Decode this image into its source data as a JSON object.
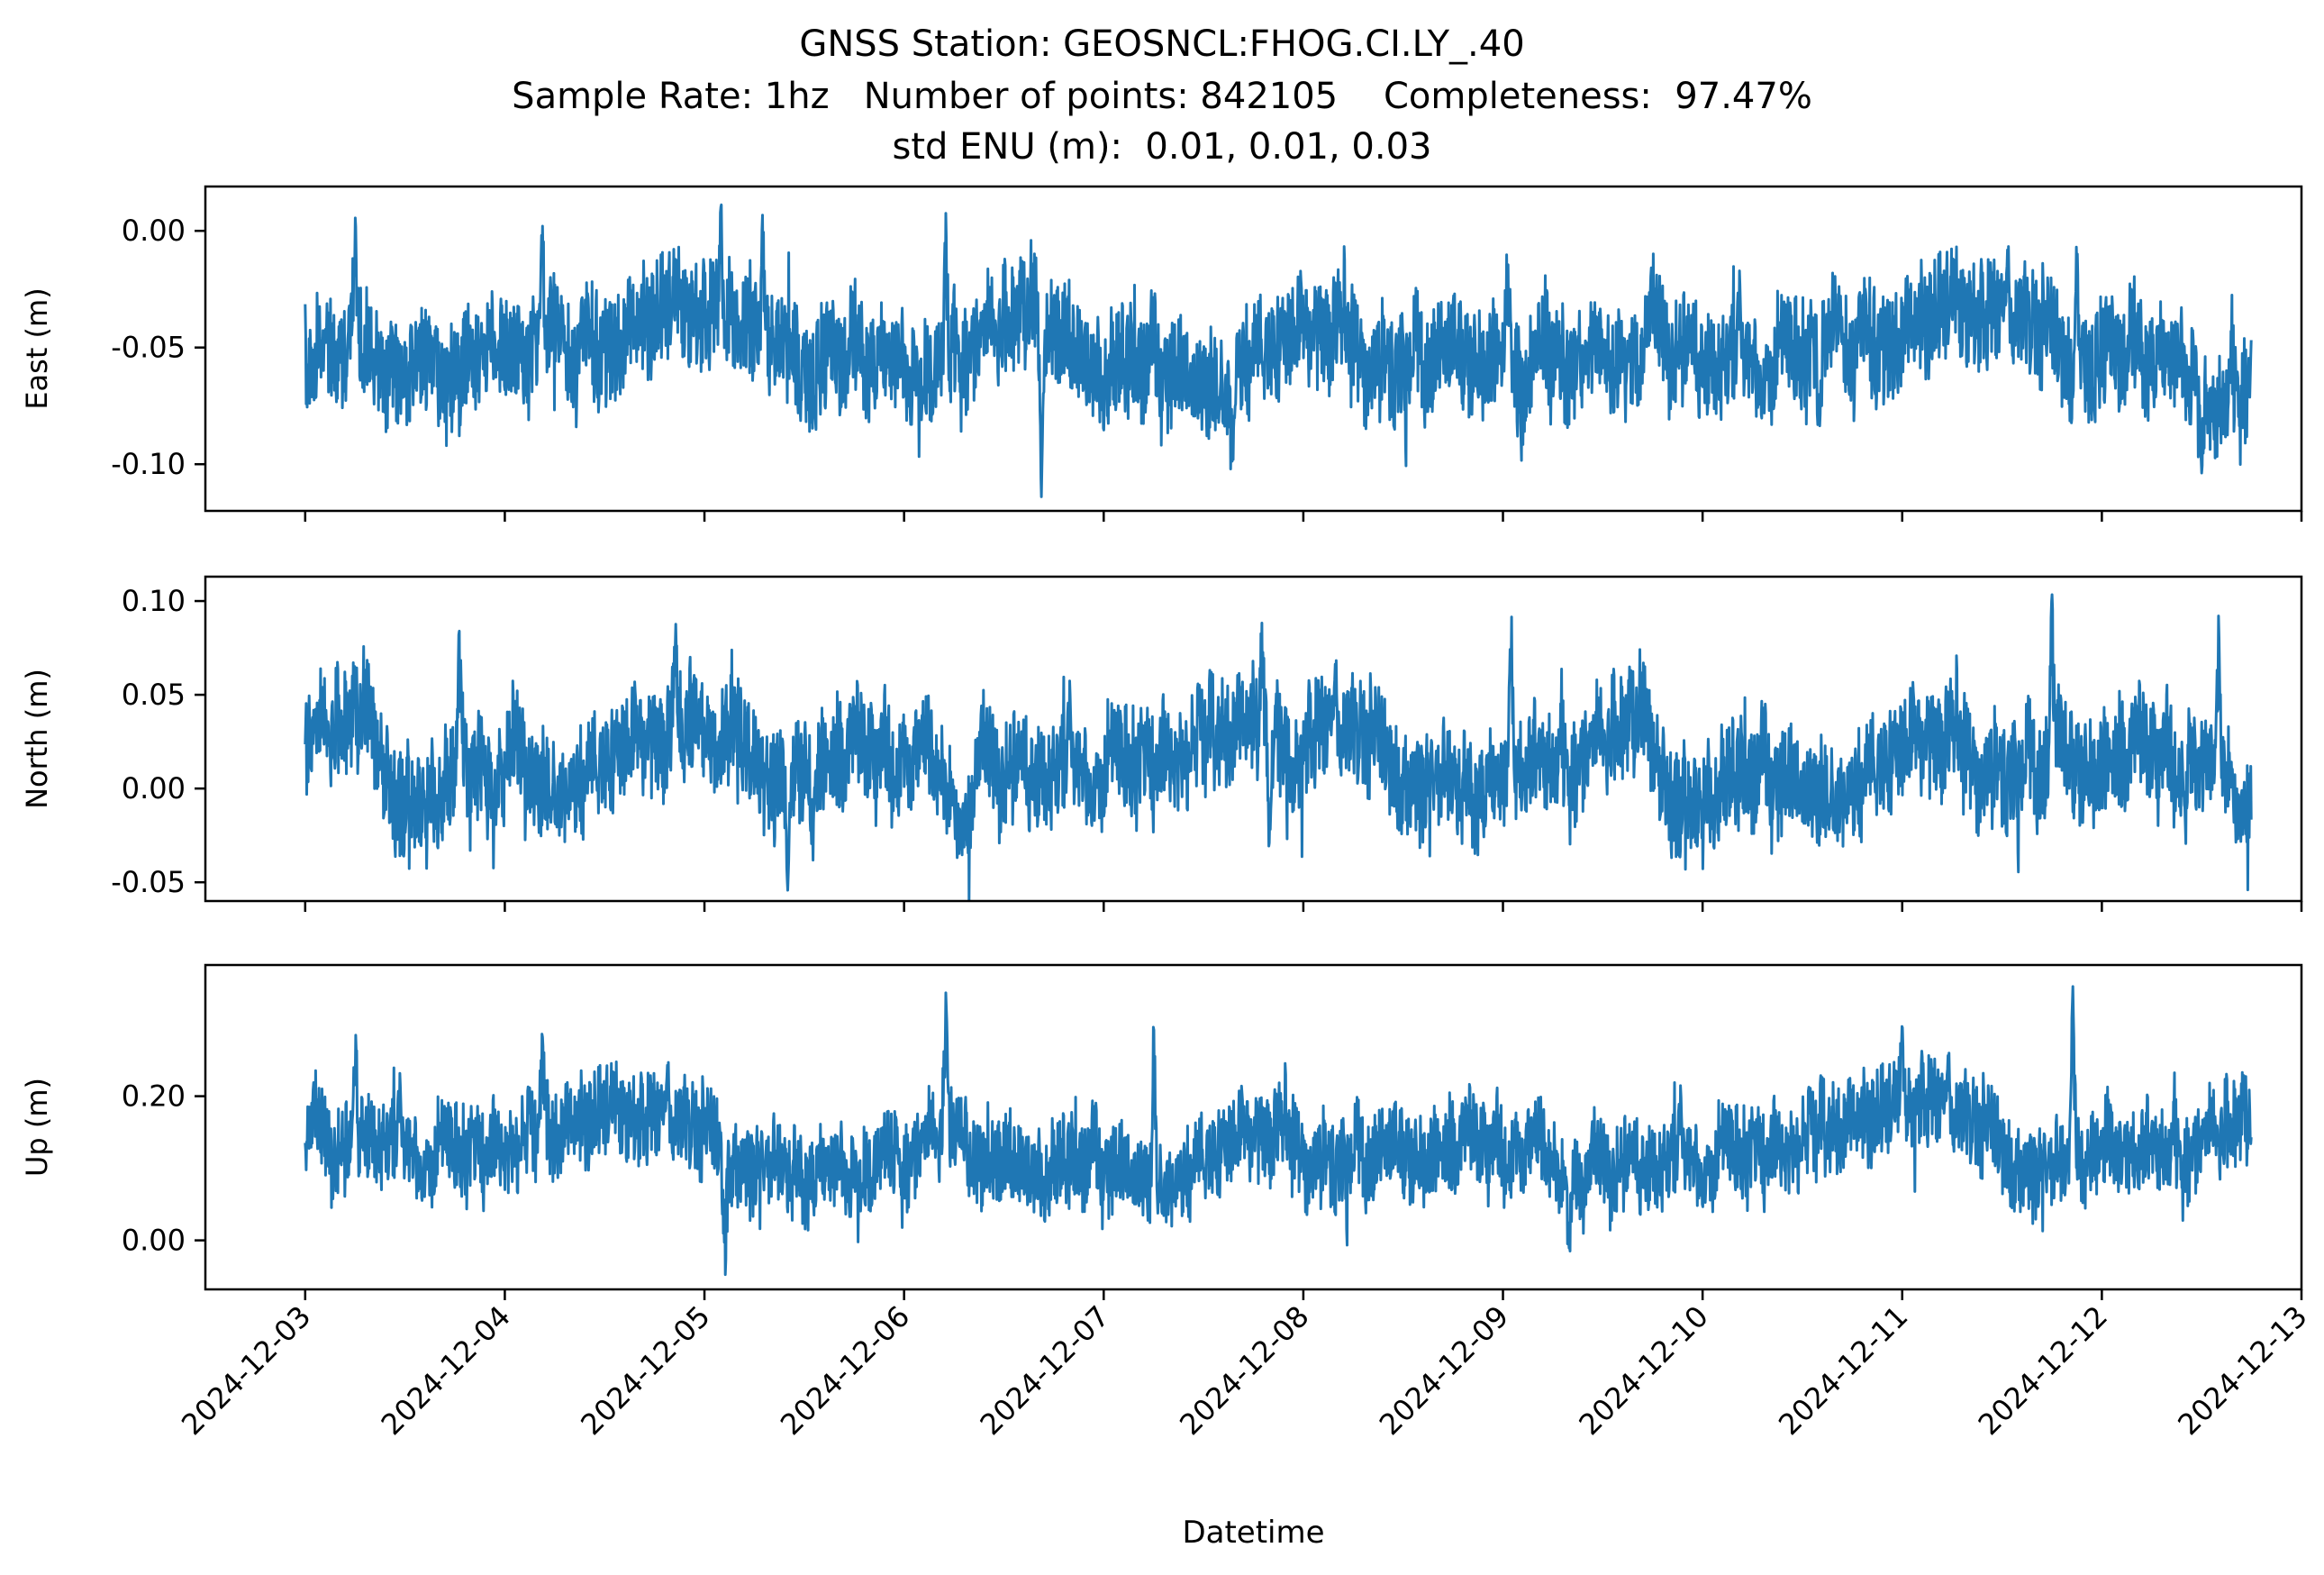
{
  "chart_data": {
    "type": "line",
    "title_lines": [
      "GNSS Station: GEOSNCL:FHOG.CI.LY_.40",
      "Sample Rate: 1hz   Number of points: 842105    Completeness:  97.47%",
      "std ENU (m):  0.01, 0.01, 0.03"
    ],
    "xlabel": "Datetime",
    "x_range": [
      "2024-12-02T12:00",
      "2024-12-13T00:00"
    ],
    "x_data_range": [
      "2024-12-03T00:00",
      "2024-12-12T18:00"
    ],
    "x_ticks": [
      "2024-12-03",
      "2024-12-04",
      "2024-12-05",
      "2024-12-06",
      "2024-12-07",
      "2024-12-08",
      "2024-12-09",
      "2024-12-10",
      "2024-12-11",
      "2024-12-12",
      "2024-12-13"
    ],
    "line_color": "#1f77b4",
    "shared_x": true,
    "panels": [
      {
        "name": "east",
        "ylabel": "East (m)",
        "ylim": [
          -0.12,
          0.019
        ],
        "yticks": [
          0.0,
          -0.05,
          -0.1
        ],
        "ytick_labels": [
          "0.00",
          "-0.05",
          "-0.10"
        ],
        "mean": -0.05,
        "envelope_low": -0.078,
        "envelope_high": -0.026,
        "spikes": [
          {
            "x": "2024-12-03T06:00",
            "y": 0.008
          },
          {
            "x": "2024-12-04T04:30",
            "y": 0.006
          },
          {
            "x": "2024-12-05T02:00",
            "y": 0.013
          },
          {
            "x": "2024-12-05T07:00",
            "y": 0.009
          },
          {
            "x": "2024-12-06T05:00",
            "y": 0.009
          },
          {
            "x": "2024-12-06T16:30",
            "y": -0.115
          },
          {
            "x": "2024-12-07T15:30",
            "y": -0.103
          },
          {
            "x": "2024-12-09T00:30",
            "y": -0.003
          },
          {
            "x": "2024-12-10T14:00",
            "y": -0.093
          },
          {
            "x": "2024-12-11T21:00",
            "y": -0.001
          },
          {
            "x": "2024-12-12T12:00",
            "y": -0.104
          }
        ]
      },
      {
        "name": "north",
        "ylabel": "North (m)",
        "ylim": [
          -0.06,
          0.113
        ],
        "yticks": [
          0.1,
          0.05,
          0.0,
          -0.05
        ],
        "ytick_labels": [
          "0.10",
          "0.05",
          "0.00",
          "-0.05"
        ],
        "mean": 0.018,
        "envelope_low": -0.012,
        "envelope_high": 0.052,
        "spikes": [
          {
            "x": "2024-12-03T18:30",
            "y": 0.088
          },
          {
            "x": "2024-12-04T20:30",
            "y": 0.095
          },
          {
            "x": "2024-12-05T10:00",
            "y": -0.056
          },
          {
            "x": "2024-12-05T13:00",
            "y": -0.047
          },
          {
            "x": "2024-12-07T19:00",
            "y": 0.09
          },
          {
            "x": "2024-12-07T20:00",
            "y": -0.053
          },
          {
            "x": "2024-12-09T01:00",
            "y": 0.099
          },
          {
            "x": "2024-12-11T18:00",
            "y": 0.106
          },
          {
            "x": "2024-12-12T14:00",
            "y": 0.096
          },
          {
            "x": "2024-12-12T10:00",
            "y": -0.042
          }
        ]
      },
      {
        "name": "up",
        "ylabel": "Up (m)",
        "ylim": [
          -0.068,
          0.382
        ],
        "yticks": [
          0.2,
          0.0
        ],
        "ytick_labels": [
          "0.20",
          "0.00"
        ],
        "mean": 0.13,
        "envelope_low": 0.06,
        "envelope_high": 0.2,
        "spikes": [
          {
            "x": "2024-12-03T06:00",
            "y": 0.315
          },
          {
            "x": "2024-12-04T04:30",
            "y": 0.29
          },
          {
            "x": "2024-12-05T02:30",
            "y": -0.05
          },
          {
            "x": "2024-12-06T05:00",
            "y": 0.35
          },
          {
            "x": "2024-12-07T06:00",
            "y": 0.31
          },
          {
            "x": "2024-12-09T08:00",
            "y": -0.025
          },
          {
            "x": "2024-12-11T20:30",
            "y": 0.36
          },
          {
            "x": "2024-12-11T00:00",
            "y": 0.3
          }
        ]
      }
    ]
  }
}
